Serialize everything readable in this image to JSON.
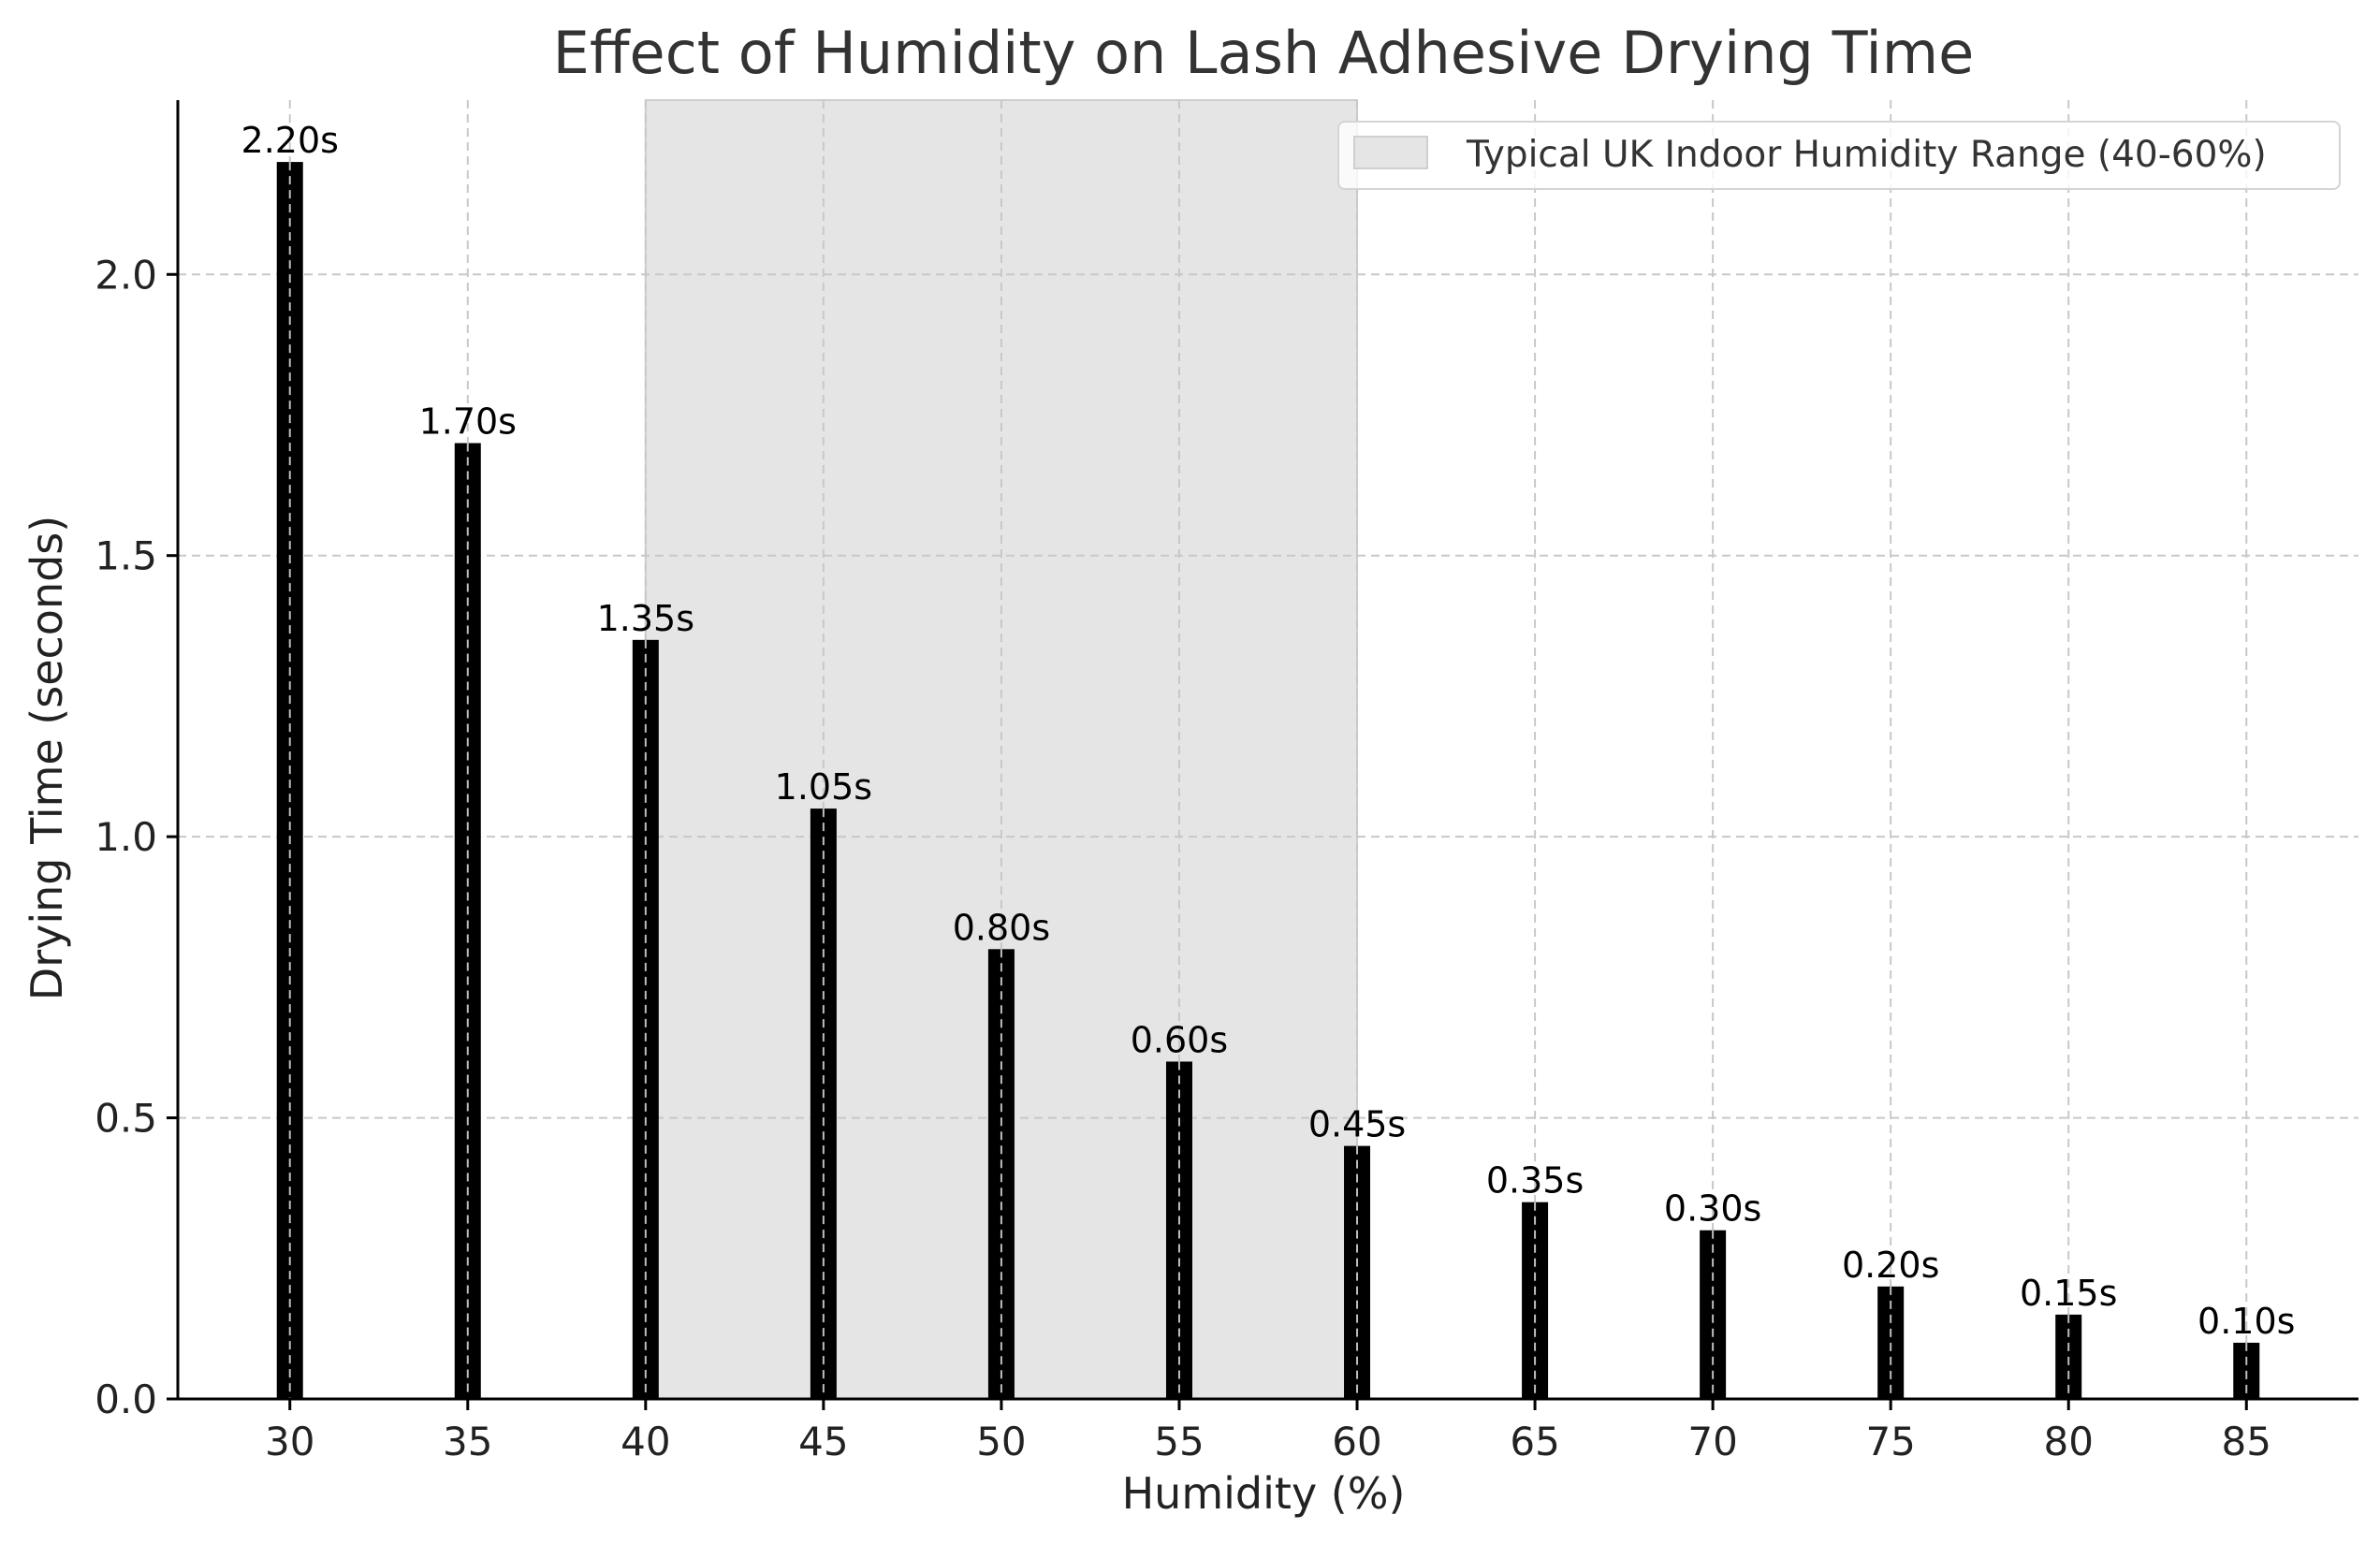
{
  "chart_data": {
    "type": "bar",
    "title": "Effect of Humidity on Lash Adhesive Drying Time",
    "xlabel": "Humidity (%)",
    "ylabel": "Drying Time (seconds)",
    "categories": [
      "30",
      "35",
      "40",
      "45",
      "50",
      "55",
      "60",
      "65",
      "70",
      "75",
      "80",
      "85"
    ],
    "x": [
      30,
      35,
      40,
      45,
      50,
      55,
      60,
      65,
      70,
      75,
      80,
      85
    ],
    "values": [
      2.2,
      1.7,
      1.35,
      1.05,
      0.8,
      0.6,
      0.45,
      0.35,
      0.3,
      0.2,
      0.15,
      0.1
    ],
    "data_labels": [
      "2.20s",
      "1.70s",
      "1.35s",
      "1.05s",
      "0.80s",
      "0.60s",
      "0.45s",
      "0.35s",
      "0.30s",
      "0.20s",
      "0.15s",
      "0.10s"
    ],
    "ylim": [
      0,
      2.31
    ],
    "xlim": [
      26.85,
      88.15
    ],
    "yticks": [
      0.0,
      0.5,
      1.0,
      1.5,
      2.0
    ],
    "ytick_labels": [
      "0.0",
      "0.5",
      "1.0",
      "1.5",
      "2.0"
    ],
    "grid": true,
    "bar_color": "#000000",
    "shaded_region": {
      "x_range": [
        40,
        60
      ],
      "label": "Typical UK Indoor Humidity Range (40-60%)",
      "color": "#e5e5e5"
    },
    "legend": {
      "placement": "top-right",
      "entries": [
        "Typical UK Indoor Humidity Range (40-60%)"
      ]
    }
  }
}
